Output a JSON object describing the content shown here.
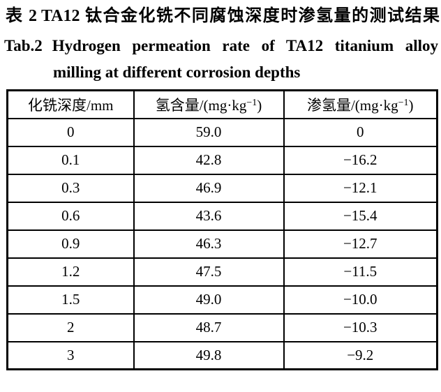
{
  "titles": {
    "zh_label": "表 2",
    "zh_text": "TA12 钛合金化铣不同腐蚀深度时渗氢量的测试结果",
    "en_label": "Tab.2",
    "en_line1": "Hydrogen permeation rate of TA12 titanium alloy",
    "en_line2": "milling at different corrosion depths"
  },
  "table": {
    "headers": [
      {
        "base": "化铣深度/mm",
        "sup": "",
        "suffix": ""
      },
      {
        "base": "氢含量/(mg·kg",
        "sup": "−1",
        "suffix": ")"
      },
      {
        "base": "渗氢量/(mg·kg",
        "sup": "−1",
        "suffix": ")"
      }
    ],
    "rows": [
      [
        "0",
        "59.0",
        "0"
      ],
      [
        "0.1",
        "42.8",
        "−16.2"
      ],
      [
        "0.3",
        "46.9",
        "−12.1"
      ],
      [
        "0.6",
        "43.6",
        "−15.4"
      ],
      [
        "0.9",
        "46.3",
        "−12.7"
      ],
      [
        "1.2",
        "47.5",
        "−11.5"
      ],
      [
        "1.5",
        "49.0",
        "−10.0"
      ],
      [
        "2",
        "48.7",
        "−10.3"
      ],
      [
        "3",
        "49.8",
        "−9.2"
      ]
    ]
  },
  "colors": {
    "text": "#000000",
    "background": "#ffffff",
    "border": "#000000"
  },
  "chart_data": {
    "type": "table",
    "title_zh": "表 2 TA12 钛合金化铣不同腐蚀深度时渗氢量的测试结果",
    "title_en": "Tab.2 Hydrogen permeation rate of TA12 titanium alloy milling at different corrosion depths",
    "columns": [
      "化铣深度/mm",
      "氢含量/(mg·kg⁻¹)",
      "渗氢量/(mg·kg⁻¹)"
    ],
    "milling_depth_mm": [
      0,
      0.1,
      0.3,
      0.6,
      0.9,
      1.2,
      1.5,
      2,
      3
    ],
    "hydrogen_content_mg_per_kg": [
      59.0,
      42.8,
      46.9,
      43.6,
      46.3,
      47.5,
      49.0,
      48.7,
      49.8
    ],
    "hydrogen_permeation_mg_per_kg": [
      0,
      -16.2,
      -12.1,
      -15.4,
      -12.7,
      -11.5,
      -10.0,
      -10.3,
      -9.2
    ]
  }
}
